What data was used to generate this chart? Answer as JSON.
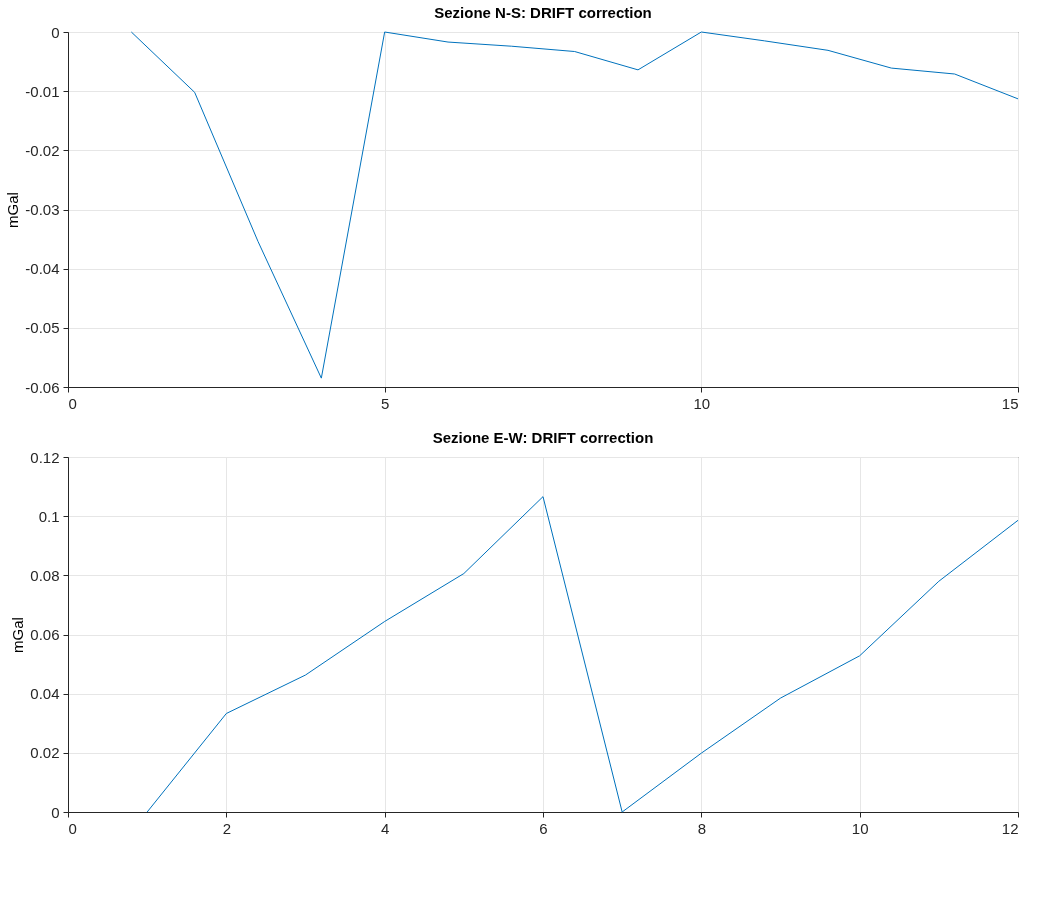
{
  "chart_data": [
    {
      "type": "line",
      "title": "Sezione N-S: DRIFT correction",
      "ylabel": "mGal",
      "x": [
        1,
        2,
        3,
        4,
        5,
        6,
        7,
        8,
        9,
        10,
        11,
        12,
        13,
        14,
        15
      ],
      "series": [
        {
          "color": "#0072bd",
          "values": [
            0,
            -0.0102,
            -0.0354,
            -0.0585,
            0,
            -0.0017,
            -0.0024,
            -0.0033,
            -0.0064,
            0,
            -0.0015,
            -0.0031,
            -0.0061,
            -0.0071,
            -0.0113
          ]
        }
      ],
      "xlim": [
        0,
        15
      ],
      "xticks": [
        0,
        5,
        10,
        15
      ],
      "ylim": [
        -0.06,
        0
      ],
      "yticks": [
        -0.06,
        -0.05,
        -0.04,
        -0.03,
        -0.02,
        -0.01,
        0
      ],
      "grid": true,
      "marker": "none",
      "line_style": "solid"
    },
    {
      "type": "line",
      "title": "Sezione E-W: DRIFT correction",
      "ylabel": "mGal",
      "x": [
        1,
        2,
        3,
        4,
        5,
        6,
        7,
        8,
        9,
        10,
        11,
        12
      ],
      "series": [
        {
          "color": "#0072bd",
          "values": [
            0,
            0.0333,
            0.0463,
            0.0644,
            0.0806,
            0.1066,
            0,
            0.0199,
            0.0385,
            0.0528,
            0.078,
            0.0986
          ]
        }
      ],
      "xlim": [
        0,
        12
      ],
      "xticks": [
        0,
        2,
        4,
        6,
        8,
        10,
        12
      ],
      "ylim": [
        0,
        0.12
      ],
      "yticks": [
        0,
        0.02,
        0.04,
        0.06,
        0.08,
        0.1,
        0.12
      ],
      "grid": true,
      "marker": "none",
      "line_style": "solid"
    }
  ]
}
